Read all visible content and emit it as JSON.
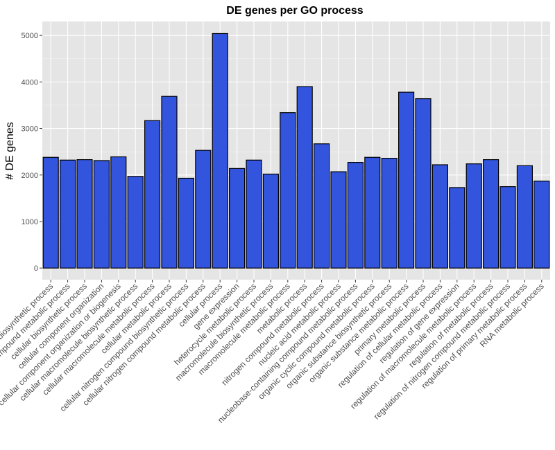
{
  "chart_data": {
    "type": "bar",
    "title": "DE genes per GO process",
    "xlabel": "",
    "ylabel": "# DE genes",
    "ylim": [
      -250,
      5300
    ],
    "yticks": [
      0,
      1000,
      2000,
      3000,
      4000,
      5000
    ],
    "grid": true,
    "bar_color": "#3355dd",
    "panel_color": "#e5e5e5",
    "categories": [
      "biosynthetic process",
      "cellular aromatic compound metabolic process",
      "cellular biosynthetic process",
      "cellular component organization",
      "cellular component organization or biogenesis",
      "cellular macromolecule biosynthetic process",
      "cellular macromolecule metabolic process",
      "cellular metabolic process",
      "cellular nitrogen compound biosynthetic process",
      "cellular nitrogen compound metabolic process",
      "cellular process",
      "gene expression",
      "heterocycle metabolic process",
      "macromolecule biosynthetic process",
      "macromolecule metabolic process",
      "metabolic process",
      "nitrogen compound metabolic process",
      "nucleic acid metabolic process",
      "nucleobase-containing compound metabolic process",
      "organic cyclic compound metabolic process",
      "organic substance biosynthetic process",
      "organic substance metabolic process",
      "primary metabolic process",
      "regulation of cellular metabolic process",
      "regulation of gene expression",
      "regulation of macromolecule metabolic process",
      "regulation of metabolic process",
      "regulation of nitrogen compound metabolic process",
      "regulation of primary metabolic process",
      "RNA metabolic process"
    ],
    "values": [
      2380,
      2320,
      2330,
      2310,
      2390,
      1970,
      3170,
      3690,
      1930,
      2530,
      5040,
      2140,
      2320,
      2020,
      3340,
      3900,
      2670,
      2070,
      2270,
      2380,
      2360,
      3780,
      3640,
      2220,
      1730,
      2240,
      2330,
      1750,
      2200,
      1870
    ]
  }
}
